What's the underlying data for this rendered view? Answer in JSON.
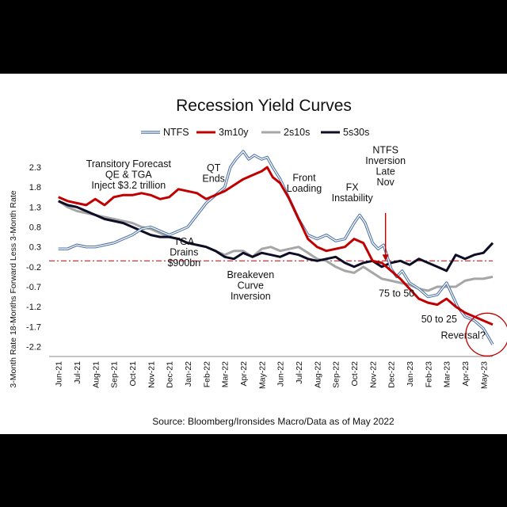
{
  "chart_data": {
    "type": "line",
    "title": "Recession Yield Curves",
    "ylabel": "3-Month Rate 18-Months Forward Less 3-Month Rate",
    "xlabel": "",
    "source": "Source: Bloomberg/Ironsides Macro/Data as of May 2022",
    "ylim": [
      -2.45,
      2.6
    ],
    "yticks": [
      2.3,
      1.8,
      1.3,
      0.8,
      0.3,
      -0.2,
      -0.7,
      -1.2,
      -1.7,
      -2.2
    ],
    "ytick_labels": [
      "2.3",
      "1.8",
      "1.3",
      "0.8",
      "0.3",
      "-0.2",
      "-0.7",
      "-1.2",
      "-1.7",
      "-2.2"
    ],
    "categories": [
      "Jun-21",
      "Jul-21",
      "Aug-21",
      "Sep-21",
      "Oct-21",
      "Nov-21",
      "Dec-21",
      "Jan-22",
      "Feb-22",
      "Mar-22",
      "Apr-22",
      "May-22",
      "Jun-22",
      "Jul-22",
      "Aug-22",
      "Sep-22",
      "Oct-22",
      "Nov-22",
      "Dec-22",
      "Jan-23",
      "Feb-23",
      "Mar-23",
      "Apr-23",
      "May-23"
    ],
    "reference_line": -0.05,
    "legend_position": "top",
    "series": [
      {
        "name": "NTFS",
        "color": "#4a6fa5",
        "style": "double",
        "values": [
          [
            0,
            0.25
          ],
          [
            0.5,
            0.25
          ],
          [
            1,
            0.35
          ],
          [
            1.5,
            0.3
          ],
          [
            2,
            0.3
          ],
          [
            2.5,
            0.35
          ],
          [
            3,
            0.4
          ],
          [
            3.5,
            0.5
          ],
          [
            4,
            0.6
          ],
          [
            4.5,
            0.75
          ],
          [
            5,
            0.8
          ],
          [
            5.5,
            0.7
          ],
          [
            6,
            0.6
          ],
          [
            6.5,
            0.7
          ],
          [
            7,
            0.8
          ],
          [
            7.5,
            1.1
          ],
          [
            8,
            1.4
          ],
          [
            8.5,
            1.6
          ],
          [
            9,
            1.8
          ],
          [
            9.3,
            2.3
          ],
          [
            9.6,
            2.5
          ],
          [
            10,
            2.7
          ],
          [
            10.3,
            2.5
          ],
          [
            10.6,
            2.6
          ],
          [
            11,
            2.5
          ],
          [
            11.3,
            2.55
          ],
          [
            11.6,
            2.3
          ],
          [
            12,
            2.0
          ],
          [
            12.5,
            1.5
          ],
          [
            13,
            1.0
          ],
          [
            13.5,
            0.6
          ],
          [
            14,
            0.5
          ],
          [
            14.5,
            0.6
          ],
          [
            15,
            0.45
          ],
          [
            15.5,
            0.5
          ],
          [
            16,
            0.9
          ],
          [
            16.3,
            1.1
          ],
          [
            16.6,
            0.9
          ],
          [
            17,
            0.4
          ],
          [
            17.3,
            0.25
          ],
          [
            17.6,
            0.35
          ],
          [
            18,
            -0.25
          ],
          [
            18.3,
            -0.45
          ],
          [
            18.6,
            -0.3
          ],
          [
            19,
            -0.6
          ],
          [
            19.5,
            -0.75
          ],
          [
            20,
            -0.95
          ],
          [
            20.5,
            -0.9
          ],
          [
            21,
            -0.6
          ],
          [
            21.3,
            -0.9
          ],
          [
            21.6,
            -1.2
          ],
          [
            22,
            -1.45
          ],
          [
            22.5,
            -1.55
          ],
          [
            23,
            -1.75
          ],
          [
            23.5,
            -2.15
          ]
        ]
      },
      {
        "name": "3m10y",
        "color": "#c00000",
        "style": "solid",
        "values": [
          [
            0,
            1.55
          ],
          [
            0.5,
            1.45
          ],
          [
            1,
            1.4
          ],
          [
            1.5,
            1.35
          ],
          [
            2,
            1.5
          ],
          [
            2.5,
            1.35
          ],
          [
            3,
            1.55
          ],
          [
            3.5,
            1.6
          ],
          [
            4,
            1.6
          ],
          [
            4.5,
            1.65
          ],
          [
            5,
            1.6
          ],
          [
            5.5,
            1.5
          ],
          [
            6,
            1.55
          ],
          [
            6.5,
            1.75
          ],
          [
            7,
            1.7
          ],
          [
            7.5,
            1.65
          ],
          [
            8,
            1.5
          ],
          [
            8.5,
            1.6
          ],
          [
            9,
            1.7
          ],
          [
            9.5,
            1.85
          ],
          [
            10,
            2.0
          ],
          [
            10.5,
            2.1
          ],
          [
            11,
            2.2
          ],
          [
            11.3,
            2.3
          ],
          [
            11.6,
            2.05
          ],
          [
            12,
            1.9
          ],
          [
            12.5,
            1.5
          ],
          [
            13,
            1.0
          ],
          [
            13.5,
            0.5
          ],
          [
            14,
            0.3
          ],
          [
            14.5,
            0.2
          ],
          [
            15,
            0.25
          ],
          [
            15.5,
            0.3
          ],
          [
            16,
            0.5
          ],
          [
            16.5,
            0.4
          ],
          [
            17,
            -0.05
          ],
          [
            17.5,
            -0.1
          ],
          [
            18,
            -0.3
          ],
          [
            18.5,
            -0.5
          ],
          [
            19,
            -0.75
          ],
          [
            19.5,
            -1.0
          ],
          [
            20,
            -1.1
          ],
          [
            20.5,
            -1.15
          ],
          [
            21,
            -1.0
          ],
          [
            21.5,
            -1.2
          ],
          [
            22,
            -1.35
          ],
          [
            22.5,
            -1.45
          ],
          [
            23,
            -1.55
          ],
          [
            23.5,
            -1.65
          ]
        ]
      },
      {
        "name": "2s10s",
        "color": "#a6a6a6",
        "style": "solid",
        "values": [
          [
            0,
            1.45
          ],
          [
            0.5,
            1.3
          ],
          [
            1,
            1.2
          ],
          [
            1.5,
            1.15
          ],
          [
            2,
            1.1
          ],
          [
            2.5,
            1.05
          ],
          [
            3,
            1.0
          ],
          [
            3.5,
            0.95
          ],
          [
            4,
            0.9
          ],
          [
            4.5,
            0.8
          ],
          [
            5,
            0.75
          ],
          [
            5.5,
            0.65
          ],
          [
            6,
            0.55
          ],
          [
            6.5,
            0.5
          ],
          [
            7,
            0.4
          ],
          [
            7.5,
            0.35
          ],
          [
            8,
            0.3
          ],
          [
            8.5,
            0.2
          ],
          [
            9,
            0.1
          ],
          [
            9.5,
            0.2
          ],
          [
            10,
            0.2
          ],
          [
            10.5,
            0.05
          ],
          [
            11,
            0.25
          ],
          [
            11.5,
            0.3
          ],
          [
            12,
            0.2
          ],
          [
            12.5,
            0.25
          ],
          [
            13,
            0.3
          ],
          [
            13.5,
            0.15
          ],
          [
            14,
            0.0
          ],
          [
            14.5,
            -0.05
          ],
          [
            15,
            -0.2
          ],
          [
            15.5,
            -0.3
          ],
          [
            16,
            -0.35
          ],
          [
            16.5,
            -0.2
          ],
          [
            17,
            -0.35
          ],
          [
            17.5,
            -0.5
          ],
          [
            18,
            -0.55
          ],
          [
            18.5,
            -0.6
          ],
          [
            19,
            -0.65
          ],
          [
            19.5,
            -0.75
          ],
          [
            20,
            -0.8
          ],
          [
            20.5,
            -0.7
          ],
          [
            21,
            -0.7
          ],
          [
            21.5,
            -0.7
          ],
          [
            22,
            -0.55
          ],
          [
            22.5,
            -0.5
          ],
          [
            23,
            -0.5
          ],
          [
            23.5,
            -0.45
          ]
        ]
      },
      {
        "name": "5s30s",
        "color": "#0d0d26",
        "style": "solid",
        "values": [
          [
            0,
            1.45
          ],
          [
            0.5,
            1.35
          ],
          [
            1,
            1.3
          ],
          [
            1.5,
            1.2
          ],
          [
            2,
            1.1
          ],
          [
            2.5,
            1.0
          ],
          [
            3,
            0.95
          ],
          [
            3.5,
            0.9
          ],
          [
            4,
            0.8
          ],
          [
            4.5,
            0.7
          ],
          [
            5,
            0.6
          ],
          [
            5.5,
            0.55
          ],
          [
            6,
            0.55
          ],
          [
            6.5,
            0.5
          ],
          [
            7,
            0.4
          ],
          [
            7.5,
            0.35
          ],
          [
            8,
            0.3
          ],
          [
            8.5,
            0.2
          ],
          [
            9,
            0.05
          ],
          [
            9.5,
            0.0
          ],
          [
            10,
            0.15
          ],
          [
            10.5,
            0.05
          ],
          [
            11,
            0.15
          ],
          [
            11.5,
            0.1
          ],
          [
            12,
            0.05
          ],
          [
            12.5,
            0.15
          ],
          [
            13,
            0.1
          ],
          [
            13.5,
            0.0
          ],
          [
            14,
            -0.05
          ],
          [
            14.5,
            0.0
          ],
          [
            15,
            0.05
          ],
          [
            15.5,
            -0.1
          ],
          [
            16,
            -0.2
          ],
          [
            16.5,
            -0.1
          ],
          [
            17,
            -0.05
          ],
          [
            17.5,
            -0.2
          ],
          [
            18,
            -0.1
          ],
          [
            18.5,
            -0.05
          ],
          [
            19,
            -0.15
          ],
          [
            19.5,
            0.0
          ],
          [
            20,
            -0.1
          ],
          [
            20.5,
            -0.2
          ],
          [
            21,
            -0.3
          ],
          [
            21.5,
            0.1
          ],
          [
            22,
            0.0
          ],
          [
            22.5,
            0.1
          ],
          [
            23,
            0.15
          ],
          [
            23.5,
            0.4
          ]
        ]
      }
    ],
    "annotations": [
      {
        "id": "transitory",
        "lines": [
          "Transitory Forecast",
          "QE & TGA",
          "Inject $3.2 trillion"
        ],
        "x": 3.8,
        "y": 2.3
      },
      {
        "id": "qt-ends",
        "lines": [
          "QT",
          "Ends"
        ],
        "x": 8.4,
        "y": 2.2
      },
      {
        "id": "front-loading",
        "lines": [
          "Front",
          "Loading"
        ],
        "x": 13.3,
        "y": 1.95
      },
      {
        "id": "ntfs-inversion",
        "lines": [
          "NTFS",
          "Inversion",
          "Late",
          "Nov"
        ],
        "x": 17.7,
        "y": 2.65
      },
      {
        "id": "fx-instability",
        "lines": [
          "FX",
          "Instability"
        ],
        "x": 15.9,
        "y": 1.72
      },
      {
        "id": "tga-drains",
        "lines": [
          "TGA",
          "Drains",
          "$900bn"
        ],
        "x": 6.8,
        "y": 0.35
      },
      {
        "id": "breakeven",
        "lines": [
          "Breakeven",
          "Curve",
          "Inversion"
        ],
        "x": 10.4,
        "y": -0.48
      },
      {
        "id": "75-to-50",
        "lines": [
          "75 to 50"
        ],
        "x": 18.3,
        "y": -0.95
      },
      {
        "id": "50-to-25",
        "lines": [
          "50 to 25"
        ],
        "x": 20.6,
        "y": -1.6
      },
      {
        "id": "reversal",
        "lines": [
          "Reversal?"
        ],
        "x": 21.9,
        "y": -2.0
      }
    ]
  }
}
